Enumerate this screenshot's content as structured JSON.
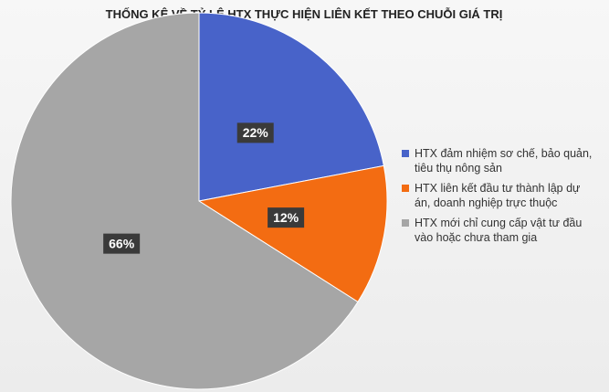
{
  "chart_data": {
    "type": "pie",
    "title": "THỐNG KÊ VỀ TỶ LỆ HTX THỰC HIỆN LIÊN KẾT THEO CHUỖI GIÁ TRỊ",
    "categories": [
      "HTX đảm nhiệm sơ chế, bảo quản, tiêu thụ nông sản",
      "HTX liên kết đầu tư thành lập dự án, doanh nghiệp trực thuộc",
      "HTX mới chỉ cung cấp vật tư đầu vào hoặc chưa tham gia"
    ],
    "values": [
      22,
      12,
      66
    ],
    "value_labels": [
      "22%",
      "12%",
      "66%"
    ],
    "colors": [
      "#4863c9",
      "#f36c12",
      "#a6a6a6"
    ],
    "legend": "right"
  }
}
